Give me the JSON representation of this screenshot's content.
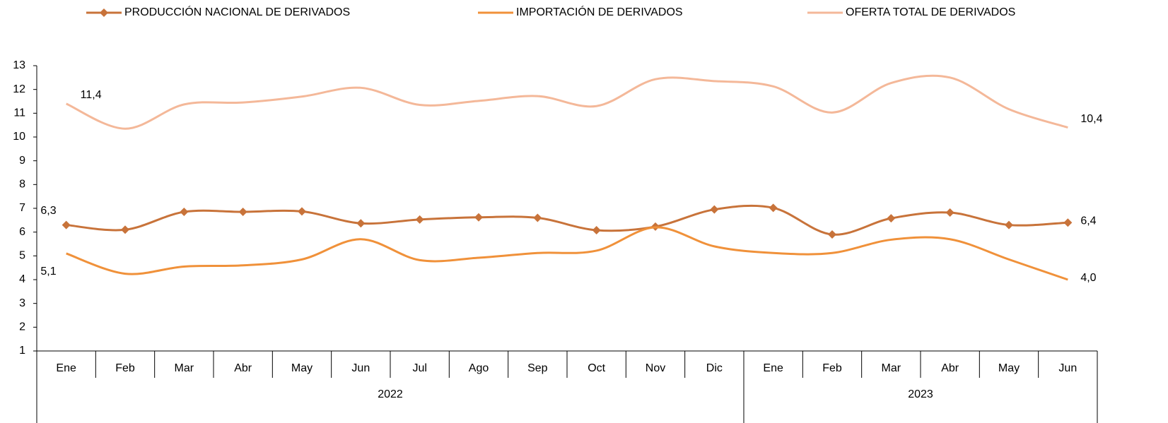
{
  "chart_data": {
    "type": "line",
    "categories": [
      "Ene",
      "Feb",
      "Mar",
      "Abr",
      "May",
      "Jun",
      "Jul",
      "Ago",
      "Sep",
      "Oct",
      "Nov",
      "Dic",
      "Ene",
      "Feb",
      "Mar",
      "Abr",
      "May",
      "Jun"
    ],
    "year_groups": [
      {
        "label": "2022",
        "count": 12
      },
      {
        "label": "2023",
        "count": 6
      }
    ],
    "ylim": [
      1,
      13
    ],
    "yticks": [
      1,
      2,
      3,
      4,
      5,
      6,
      7,
      8,
      9,
      10,
      11,
      12,
      13
    ],
    "legend": "top",
    "series": [
      {
        "name": "PRODUCCIÓN NACIONAL DE DERIVADOS",
        "color": "#c8733a",
        "marker": "diamond",
        "values": [
          6.3,
          6.1,
          6.85,
          6.85,
          6.87,
          6.37,
          6.53,
          6.62,
          6.6,
          6.08,
          6.23,
          6.95,
          7.02,
          5.9,
          6.58,
          6.82,
          6.3,
          6.4
        ],
        "value_labels": [
          "6,3",
          null,
          null,
          null,
          null,
          null,
          null,
          null,
          null,
          null,
          null,
          null,
          null,
          null,
          null,
          null,
          null,
          "6,4"
        ]
      },
      {
        "name": "IMPORTACIÓN DE DERIVADOS",
        "color": "#f0913a",
        "marker": "none",
        "values": [
          5.1,
          4.25,
          4.55,
          4.6,
          4.85,
          5.7,
          4.82,
          4.92,
          5.12,
          5.22,
          6.2,
          5.4,
          5.12,
          5.12,
          5.68,
          5.7,
          4.85,
          4.0
        ],
        "value_labels": [
          "5,1",
          null,
          null,
          null,
          null,
          null,
          null,
          null,
          null,
          null,
          null,
          null,
          null,
          null,
          null,
          null,
          null,
          "4,0"
        ]
      },
      {
        "name": "OFERTA TOTAL DE DERIVADOS",
        "color": "#f4b899",
        "marker": "none",
        "values": [
          11.4,
          10.35,
          11.37,
          11.45,
          11.7,
          12.07,
          11.35,
          11.52,
          11.72,
          11.3,
          12.43,
          12.35,
          12.13,
          11.03,
          12.27,
          12.5,
          11.17,
          10.4
        ],
        "value_labels": [
          "11,4",
          null,
          null,
          null,
          null,
          null,
          null,
          null,
          null,
          null,
          null,
          null,
          null,
          null,
          null,
          null,
          null,
          "10,4"
        ]
      }
    ]
  }
}
